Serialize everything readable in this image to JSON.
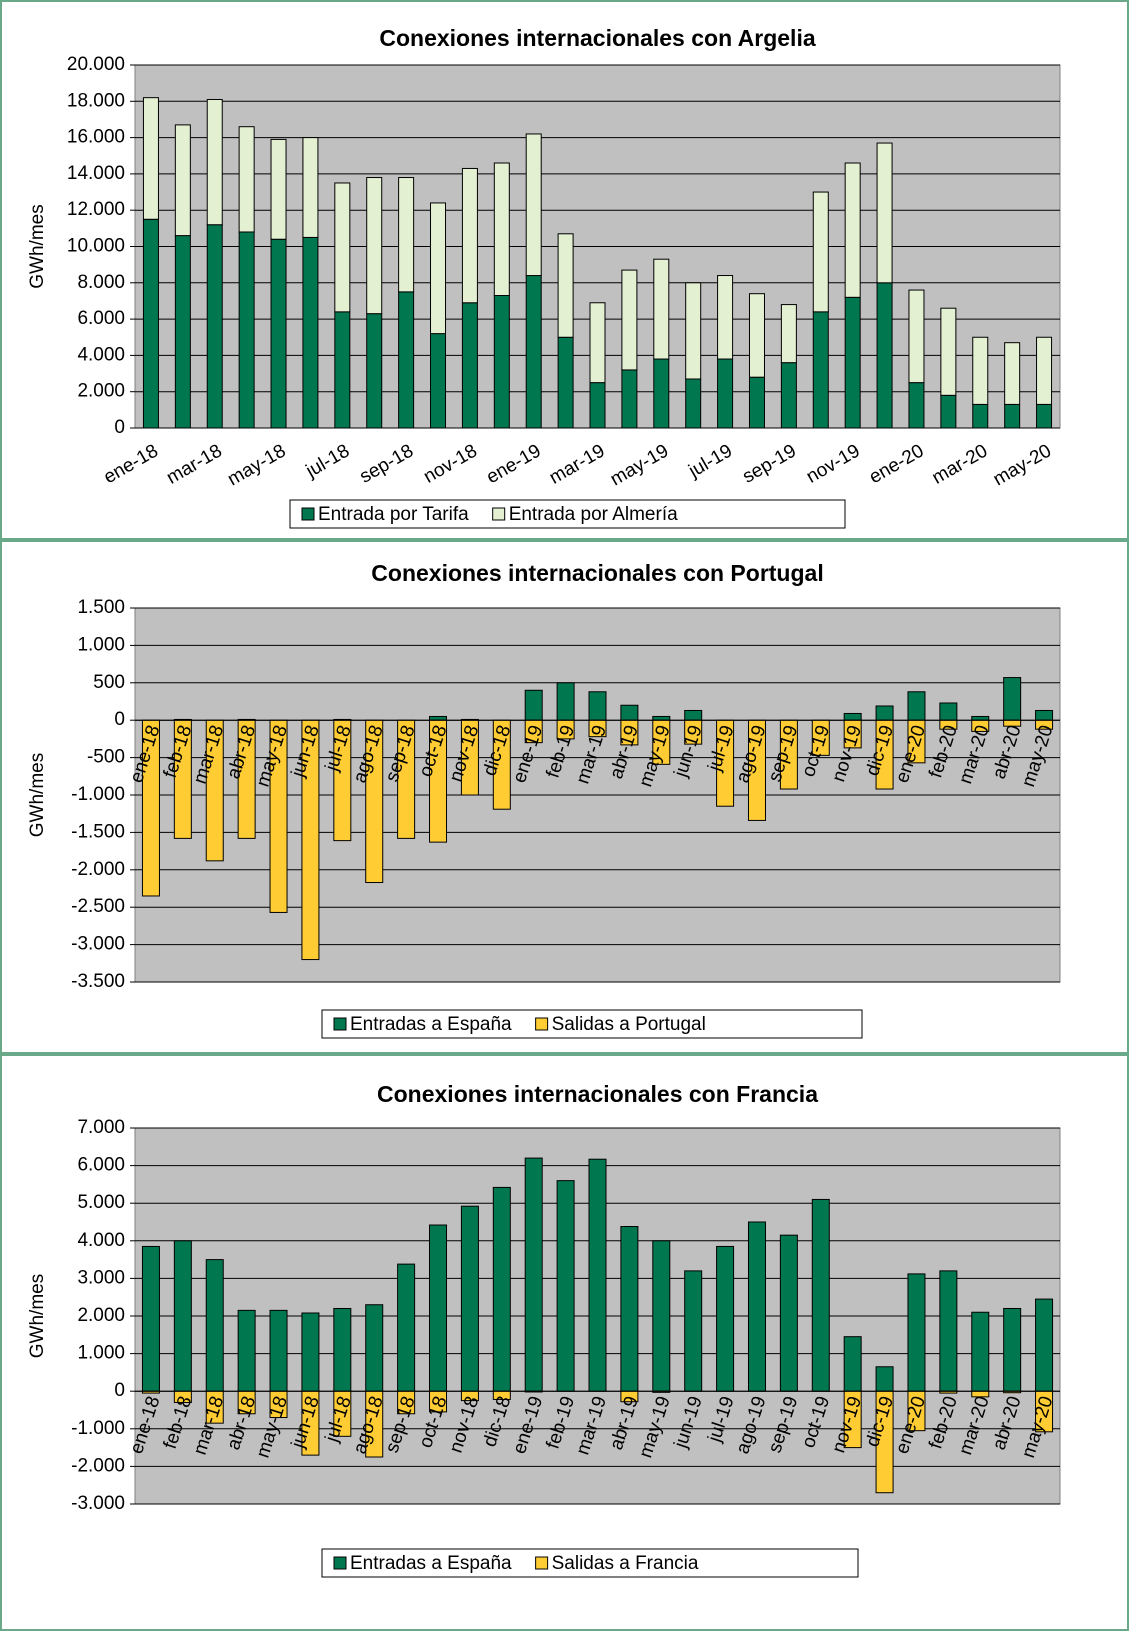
{
  "chart_data": [
    {
      "type": "stacked_bar",
      "title": "Conexiones internacionales con Argelia",
      "y_label": "GWh/mes",
      "categories": [
        "ene-18",
        null,
        "mar-18",
        null,
        "may-18",
        null,
        "jul-18",
        null,
        "sep-18",
        null,
        "nov-18",
        null,
        "ene-19",
        null,
        "mar-19",
        null,
        "may-19",
        null,
        "jul-19",
        null,
        "sep-19",
        null,
        "nov-19",
        null,
        "ene-20",
        null,
        "mar-20",
        null,
        "may-20"
      ],
      "series": [
        {
          "name": "Entrada por Tarifa",
          "color": "#00774e",
          "values": [
            11500,
            10600,
            11200,
            10800,
            10400,
            10500,
            6400,
            6300,
            7500,
            5200,
            6900,
            7300,
            8400,
            5000,
            2500,
            3200,
            3800,
            2700,
            3800,
            2800,
            3600,
            6400,
            7200,
            8000,
            2500,
            1800,
            1300,
            1300,
            1300
          ]
        },
        {
          "name": "Entrada por Almería",
          "color": "#e4f0d2",
          "values": [
            6700,
            6100,
            6900,
            5800,
            5500,
            5500,
            7100,
            7500,
            6300,
            7200,
            7400,
            7300,
            7800,
            5700,
            4400,
            5500,
            5500,
            5300,
            4600,
            4600,
            3200,
            6600,
            7400,
            7700,
            5100,
            4800,
            3700,
            3400,
            3700
          ]
        }
      ],
      "ylim": [
        0,
        20000
      ],
      "yticks": [
        0,
        {
          "value": 2000,
          "label": "2.000"
        },
        {
          "value": 4000,
          "label": "4.000"
        },
        {
          "value": 6000,
          "label": "6.000"
        },
        {
          "value": 8000,
          "label": "8.000"
        },
        {
          "value": 10000,
          "label": "10.000"
        },
        {
          "value": 12000,
          "label": "12.000"
        },
        {
          "value": 14000,
          "label": "14.000"
        },
        {
          "value": 16000,
          "label": "16.000"
        },
        {
          "value": 18000,
          "label": "18.000"
        },
        {
          "value": 20000,
          "label": "20.000"
        }
      ],
      "grid": true
    },
    {
      "type": "bar",
      "title": "Conexiones internacionales con Portugal",
      "y_label": "GWh/mes",
      "categories": [
        "ene-18",
        "feb-18",
        "mar-18",
        "abr-18",
        "may-18",
        "jun-18",
        "jul-18",
        "ago-18",
        "sep-18",
        "oct-18",
        "nov-18",
        "dic-18",
        "ene-19",
        "feb-19",
        "mar-19",
        "abr-19",
        "may-19",
        "jun-19",
        "jul-19",
        "ago-19",
        "sep-19",
        "oct-19",
        "nov-19",
        "dic-19",
        "ene-20",
        "feb-20",
        "mar-20",
        "abr-20",
        "may-20"
      ],
      "series": [
        {
          "name": "Entradas a España",
          "color": "#00774e",
          "values": [
            0,
            10,
            0,
            10,
            0,
            0,
            10,
            0,
            0,
            50,
            10,
            0,
            400,
            500,
            380,
            200,
            50,
            130,
            0,
            0,
            0,
            0,
            90,
            190,
            380,
            230,
            50,
            570,
            130
          ]
        },
        {
          "name": "Salidas a Portugal",
          "color": "#ffcc33",
          "values": [
            -2350,
            -1580,
            -1880,
            -1580,
            -2570,
            -3200,
            -1610,
            -2170,
            -1580,
            -1630,
            -1000,
            -1190,
            -300,
            -250,
            -220,
            -330,
            -590,
            -320,
            -1150,
            -1340,
            -920,
            -470,
            -370,
            -920,
            -570,
            -120,
            -150,
            -80,
            -120
          ]
        }
      ],
      "ylim": [
        -3500,
        1500
      ],
      "yticks": [
        {
          "value": -3500,
          "label": "-3.500"
        },
        {
          "value": -3000,
          "label": "-3.000"
        },
        {
          "value": -2500,
          "label": "-2.500"
        },
        {
          "value": -2000,
          "label": "-2.000"
        },
        {
          "value": -1500,
          "label": "-1.500"
        },
        {
          "value": -1000,
          "label": "-1.000"
        },
        -500,
        0,
        500,
        {
          "value": 1000,
          "label": "1.000"
        },
        {
          "value": 1500,
          "label": "1.500"
        }
      ],
      "grid": true
    },
    {
      "type": "bar",
      "title": "Conexiones internacionales con Francia",
      "y_label": "GWh/mes",
      "categories": [
        "ene-18",
        "feb-18",
        "mar-18",
        "abr-18",
        "may-18",
        "jun-18",
        "jul-18",
        "ago-18",
        "sep-18",
        "oct-18",
        "nov-18",
        "dic-18",
        "ene-19",
        "feb-19",
        "mar-19",
        "abr-19",
        "may-19",
        "jun-19",
        "jul-19",
        "ago-19",
        "sep-19",
        "oct-19",
        "nov-19",
        "dic-19",
        "ene-20",
        "feb-20",
        "mar-20",
        "abr-20",
        "may-20"
      ],
      "series": [
        {
          "name": "Entradas a España",
          "color": "#00774e",
          "values": [
            3850,
            4000,
            3500,
            2150,
            2150,
            2080,
            2200,
            2300,
            3380,
            4420,
            4920,
            5420,
            6200,
            5600,
            6170,
            4380,
            4000,
            3200,
            3850,
            4500,
            4150,
            5100,
            1450,
            650,
            3120,
            3200,
            2100,
            2200,
            2450
          ]
        },
        {
          "name": "Salidas a Francia",
          "color": "#ffcc33",
          "values": [
            -50,
            -300,
            -850,
            -600,
            -700,
            -1700,
            -1200,
            -1750,
            -600,
            -550,
            -250,
            -220,
            -20,
            0,
            0,
            -280,
            -30,
            0,
            0,
            0,
            0,
            0,
            -1500,
            -2700,
            -1050,
            -50,
            -150,
            -40,
            -1080
          ]
        }
      ],
      "ylim": [
        -3000,
        7000
      ],
      "yticks": [
        {
          "value": -3000,
          "label": "-3.000"
        },
        {
          "value": -2000,
          "label": "-2.000"
        },
        {
          "value": -1000,
          "label": "-1.000"
        },
        0,
        {
          "value": 1000,
          "label": "1.000"
        },
        {
          "value": 2000,
          "label": "2.000"
        },
        {
          "value": 3000,
          "label": "3.000"
        },
        {
          "value": 4000,
          "label": "4.000"
        },
        {
          "value": 5000,
          "label": "5.000"
        },
        {
          "value": 6000,
          "label": "6.000"
        },
        {
          "value": 7000,
          "label": "7.000"
        }
      ],
      "grid": true
    }
  ]
}
